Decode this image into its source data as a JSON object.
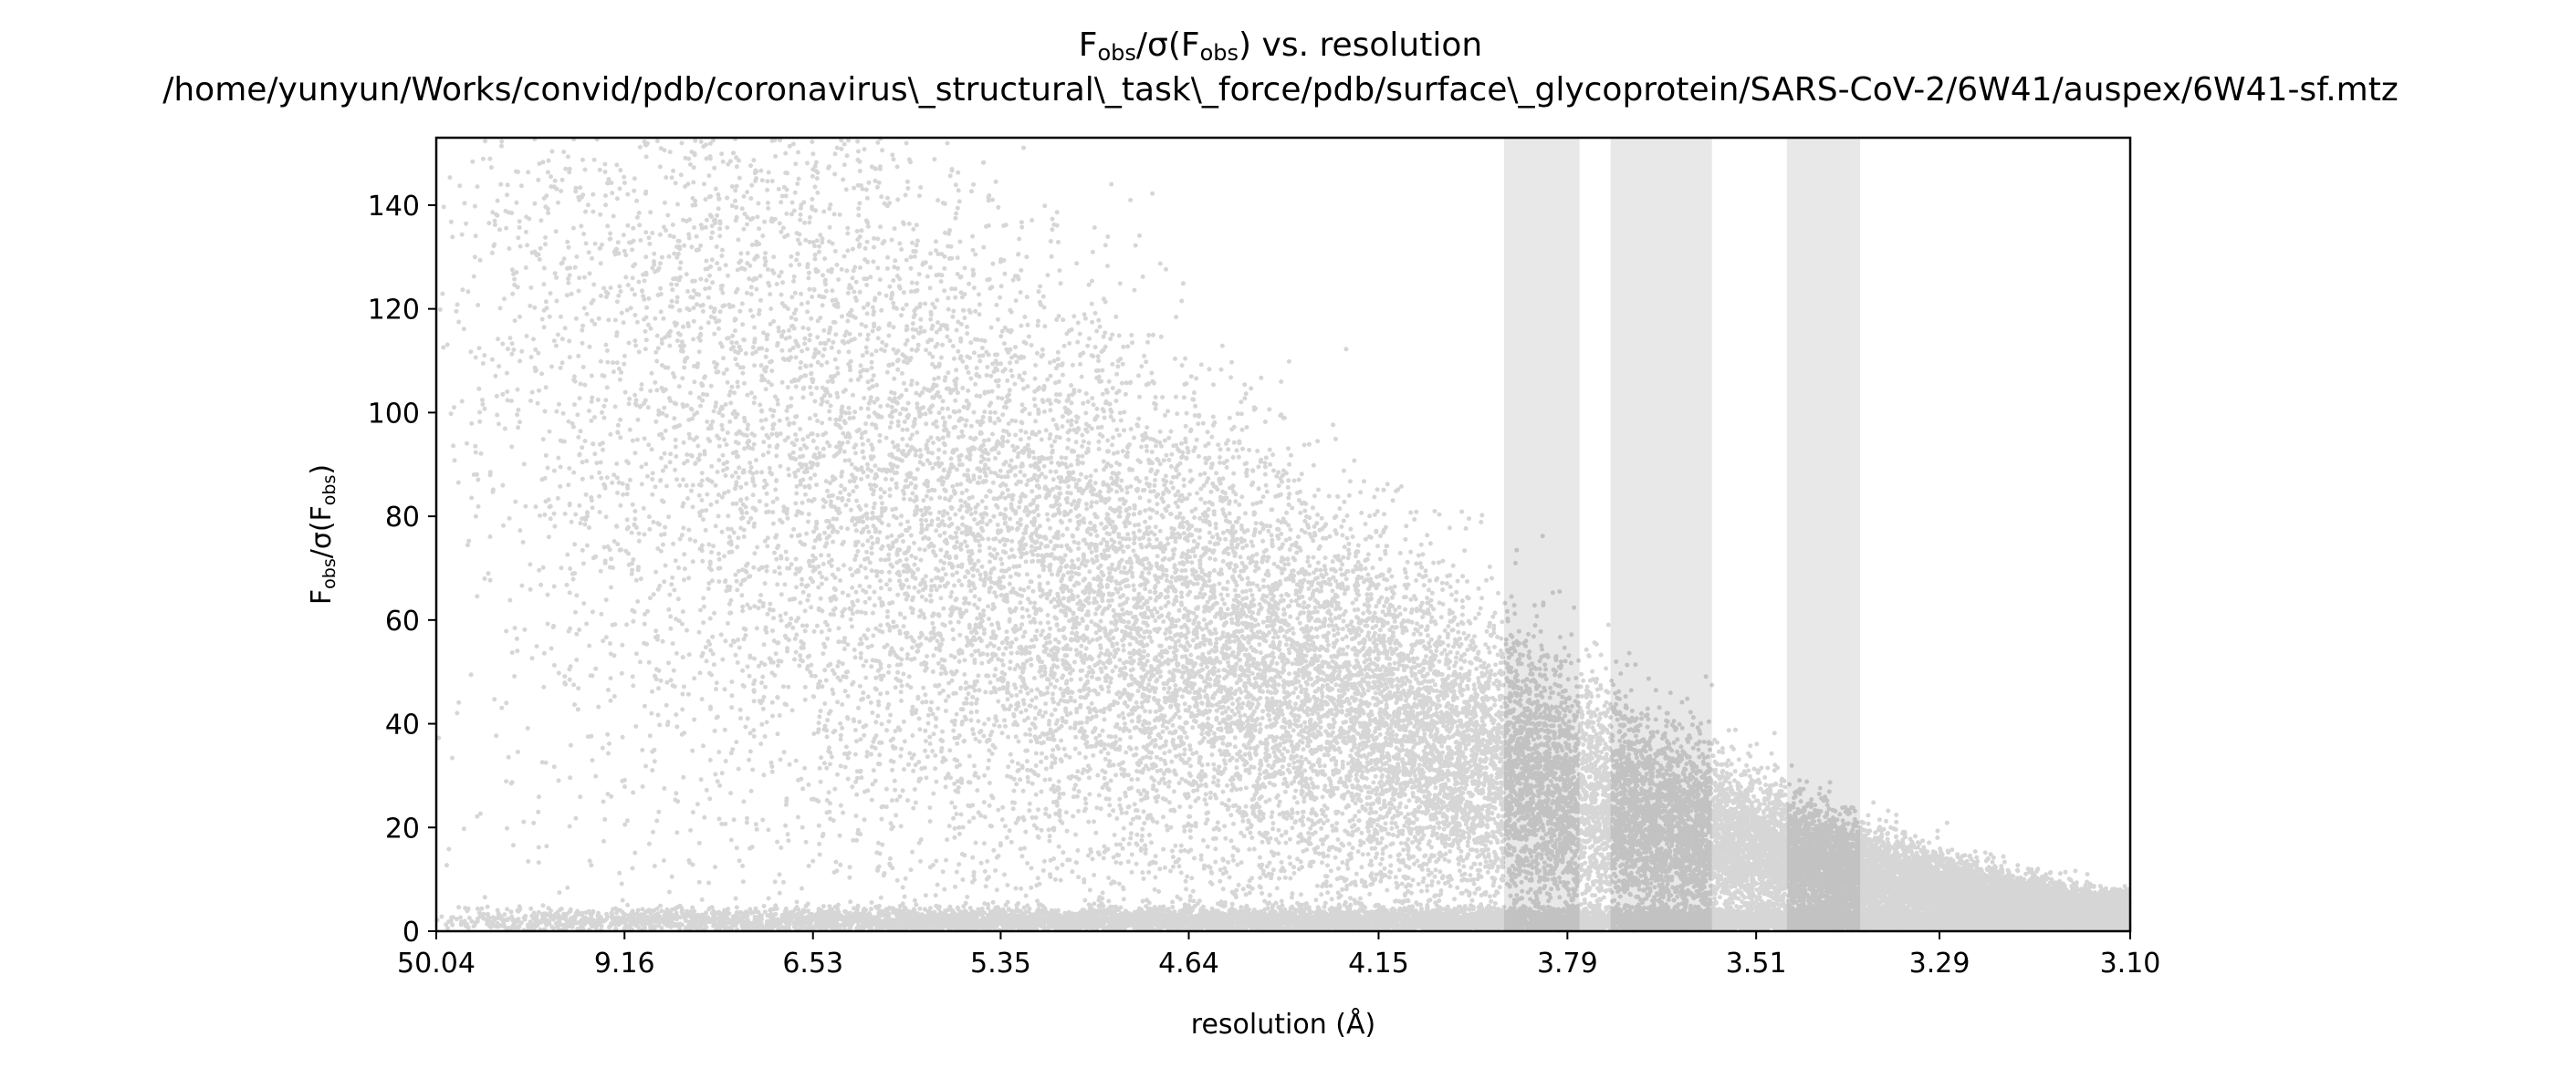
{
  "chart_data": {
    "type": "scatter",
    "title_prefix": "F",
    "title_sub1": "obs",
    "title_mid": "/σ(F",
    "title_sub2": "obs",
    "title_suffix": ") vs. resolution",
    "subtitle": "/home/yunyun/Works/convid/pdb/coronavirus\\_structural\\_task\\_force/pdb/surface\\_glycoprotein/SARS-CoV-2/6W41/auspex/6W41-sf.mtz",
    "xlabel": "resolution (Å)",
    "ylabel_main": "F",
    "ylabel_sub1": "obs",
    "ylabel_mid": "/σ(F",
    "ylabel_sub2": "obs",
    "ylabel_end": ")",
    "x_scale": "reciprocal-squared resolution (1/d²)",
    "x_ticks": [
      "50.04",
      "9.16",
      "6.53",
      "5.35",
      "4.64",
      "4.15",
      "3.79",
      "3.51",
      "3.29",
      "3.10"
    ],
    "y_ticks": [
      0,
      20,
      40,
      60,
      80,
      100,
      120,
      140
    ],
    "ylim": [
      0,
      153
    ],
    "xlim_resolution": [
      50.04,
      3.1
    ],
    "ice_ring_bands_resolution": [
      [
        3.9,
        3.77
      ],
      [
        3.72,
        3.57
      ],
      [
        3.47,
        3.38
      ]
    ],
    "grid": false,
    "legend": "none",
    "point_color": "#000000",
    "band_color": "#e8e8e8",
    "point_count_approx": 40000
  }
}
